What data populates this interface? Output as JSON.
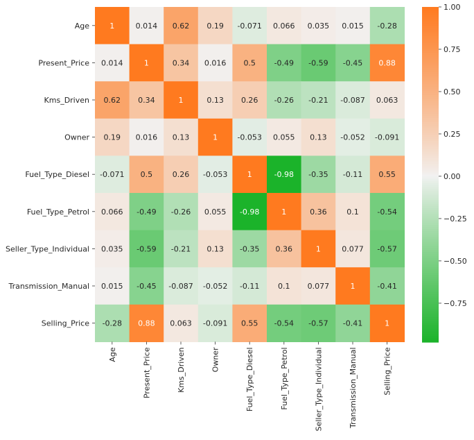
{
  "chart_data": {
    "type": "heatmap",
    "title": "",
    "xlabel": "",
    "ylabel": "",
    "labels": [
      "Age",
      "Present_Price",
      "Kms_Driven",
      "Owner",
      "Fuel_Type_Diesel",
      "Fuel_Type_Petrol",
      "Seller_Type_Individual",
      "Transmission_Manual",
      "Selling_Price"
    ],
    "matrix": [
      [
        "1",
        "0.014",
        "0.62",
        "0.19",
        "-0.071",
        "0.066",
        "0.035",
        "0.015",
        "-0.28"
      ],
      [
        "0.014",
        "1",
        "0.34",
        "0.016",
        "0.5",
        "-0.49",
        "-0.59",
        "-0.45",
        "0.88"
      ],
      [
        "0.62",
        "0.34",
        "1",
        "0.13",
        "0.26",
        "-0.26",
        "-0.21",
        "-0.087",
        "0.063"
      ],
      [
        "0.19",
        "0.016",
        "0.13",
        "1",
        "-0.053",
        "0.055",
        "0.13",
        "-0.052",
        "-0.091"
      ],
      [
        "-0.071",
        "0.5",
        "0.26",
        "-0.053",
        "1",
        "-0.98",
        "-0.35",
        "-0.11",
        "0.55"
      ],
      [
        "0.066",
        "-0.49",
        "-0.26",
        "0.055",
        "-0.98",
        "1",
        "0.36",
        "0.1",
        "-0.54"
      ],
      [
        "0.035",
        "-0.59",
        "-0.21",
        "0.13",
        "-0.35",
        "0.36",
        "1",
        "0.077",
        "-0.57"
      ],
      [
        "0.015",
        "-0.45",
        "-0.087",
        "-0.052",
        "-0.11",
        "0.1",
        "0.077",
        "1",
        "-0.41"
      ],
      [
        "-0.28",
        "0.88",
        "0.063",
        "-0.091",
        "0.55",
        "-0.54",
        "-0.57",
        "-0.41",
        "1"
      ]
    ],
    "colorbar": {
      "min": -0.98,
      "max": 1.0,
      "ticks": [
        {
          "value": 1.0,
          "label": "1.00"
        },
        {
          "value": 0.75,
          "label": "0.75"
        },
        {
          "value": 0.5,
          "label": "0.50"
        },
        {
          "value": 0.25,
          "label": "0.25"
        },
        {
          "value": 0.0,
          "label": "0.00"
        },
        {
          "value": -0.25,
          "label": "−0.25"
        },
        {
          "value": -0.5,
          "label": "−0.50"
        },
        {
          "value": -0.75,
          "label": "−0.75"
        }
      ],
      "colors": {
        "negative": "#1bb32a",
        "center": "#f2f2f2",
        "positive": "#ff7a1f"
      }
    },
    "grid": false
  }
}
